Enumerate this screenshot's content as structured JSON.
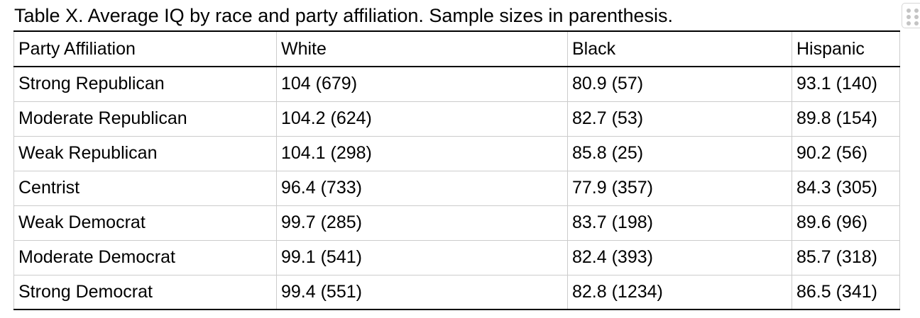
{
  "caption": "Table X. Average IQ by race and party affiliation. Sample sizes in parenthesis.",
  "table": {
    "headers": [
      "Party Affiliation",
      "White",
      "Black",
      "Hispanic"
    ],
    "rows": [
      [
        "Strong Republican",
        "104 (679)",
        "80.9 (57)",
        "93.1 (140)"
      ],
      [
        "Moderate Republican",
        "104.2 (624)",
        "82.7 (53)",
        "89.8 (154)"
      ],
      [
        "Weak Republican",
        "104.1 (298)",
        "85.8 (25)",
        "90.2 (56)"
      ],
      [
        "Centrist",
        "96.4 (733)",
        "77.9 (357)",
        "84.3 (305)"
      ],
      [
        "Weak Democrat",
        "99.7 (285)",
        "83.7 (198)",
        "89.6 (96)"
      ],
      [
        "Moderate Democrat",
        "99.1 (541)",
        "82.4 (393)",
        "85.7 (318)"
      ],
      [
        "Strong Democrat",
        "99.4 (551)",
        "82.8 (1234)",
        "86.5 (341)"
      ]
    ]
  },
  "icons": {
    "drag_handle": "drag-handle-icon"
  }
}
